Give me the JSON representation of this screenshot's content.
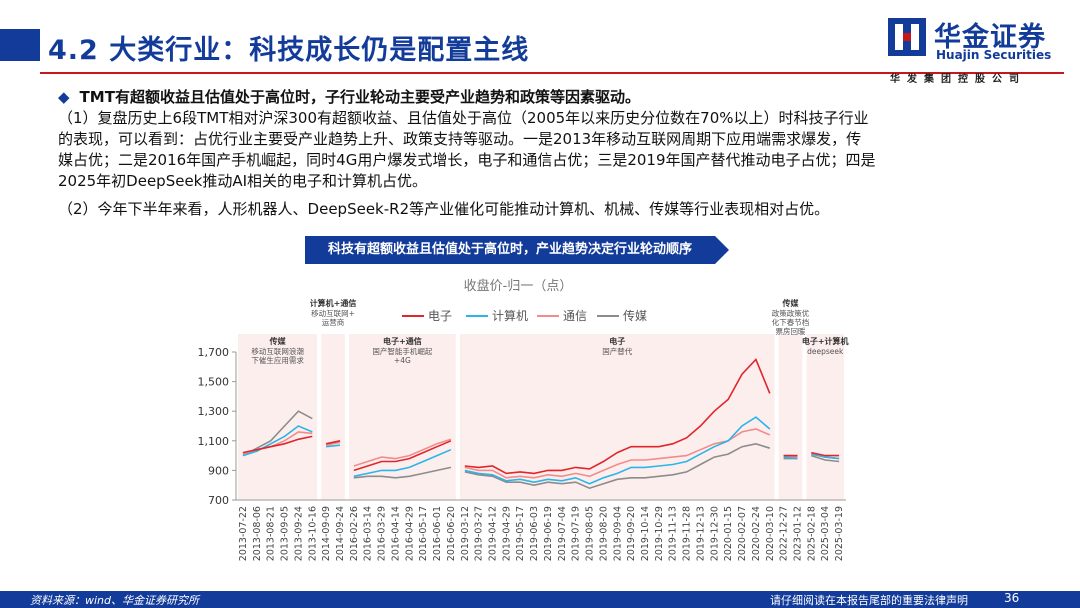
{
  "header": {
    "title": "4.2 大类行业：科技成长仍是配置主线",
    "logo_cn": "华金证券",
    "logo_en": "Huajin Securities",
    "logo_sub": "华发集团控股公司"
  },
  "summary": {
    "bullet": "TMT有超额收益且估值处于高位时，子行业轮动主要受产业趋势和政策等因素驱动。",
    "para1_line1": "（1）复盘历史上6段TMT相对沪深300有超额收益、且估值处于高位（2005年以来历史分位数在70%以上）时科技子行业",
    "para1_line2": "的表现，可以看到：占优行业主要受产业趋势上升、政策支持等驱动。一是2013年移动互联网周期下应用端需求爆发，传",
    "para1_line3": "媒占优；二是2016年国产手机崛起，同时4G用户爆发式增长，电子和通信占优；三是2019年国产替代推动电子占优；四是",
    "para1_line4": "2025年初DeepSeek推动AI相关的电子和计算机占优。",
    "para2": "（2）今年下半年来看，人形机器人、DeepSeek-R2等产业催化可能推动计算机、机械、传媒等行业表现相对占优。"
  },
  "banner": "科技有超额收益且估值处于高位时，产业趋势决定行业轮动顺序",
  "footer": {
    "source": "资料来源：wind、华金证券研究所",
    "disclaimer": "请仔细阅读在本报告尾部的重要法律声明",
    "page": "36"
  },
  "colors": {
    "brand_blue": "#123b9a",
    "brand_red": "#c8161d",
    "electronics": "#e0262b",
    "computer": "#2bb5e8",
    "telecom": "#f28b8b",
    "media": "#8c8c8c",
    "shade": "#fdeeee"
  },
  "chart_data": {
    "type": "line",
    "title": "收盘价-归一（点）",
    "ylim": [
      700,
      1700
    ],
    "yticks": [
      "700",
      "900",
      "1,100",
      "1,300",
      "1,500",
      "1,700"
    ],
    "x_ticks": [
      "2013-07-22",
      "2013-08-06",
      "2013-08-21",
      "2013-09-05",
      "2013-09-24",
      "2013-10-16",
      "2014-09-09",
      "2014-09-24",
      "2016-02-26",
      "2016-03-14",
      "2016-03-29",
      "2016-04-14",
      "2016-04-29",
      "2016-05-17",
      "2016-06-01",
      "2016-06-20",
      "2019-03-12",
      "2019-03-27",
      "2019-04-12",
      "2019-04-29",
      "2019-05-17",
      "2019-06-03",
      "2019-06-19",
      "2019-07-04",
      "2019-07-19",
      "2019-08-05",
      "2019-08-20",
      "2019-09-04",
      "2019-09-20",
      "2019-10-14",
      "2019-10-29",
      "2019-11-13",
      "2019-11-28",
      "2019-12-13",
      "2019-12-30",
      "2020-01-15",
      "2020-02-07",
      "2020-02-24",
      "2020-03-10",
      "2022-12-27",
      "2023-01-12",
      "2025-02-18",
      "2025-03-04",
      "2025-03-19"
    ],
    "series": [
      {
        "name": "电子",
        "values": [
          1020,
          1040,
          1060,
          1080,
          1110,
          1130,
          1080,
          1100,
          900,
          930,
          960,
          960,
          980,
          1020,
          1060,
          1100,
          930,
          920,
          930,
          880,
          890,
          880,
          900,
          900,
          920,
          910,
          960,
          1020,
          1060,
          1060,
          1060,
          1080,
          1120,
          1200,
          1300,
          1380,
          1550,
          1650,
          1420,
          1000,
          1000,
          1020,
          1000,
          1000
        ]
      },
      {
        "name": "计算机",
        "values": [
          1000,
          1030,
          1080,
          1130,
          1200,
          1160,
          1060,
          1070,
          860,
          880,
          900,
          900,
          920,
          960,
          1000,
          1040,
          900,
          880,
          870,
          830,
          840,
          820,
          840,
          830,
          850,
          810,
          850,
          880,
          920,
          920,
          930,
          940,
          960,
          1010,
          1060,
          1100,
          1200,
          1260,
          1180,
          990,
          980,
          1010,
          990,
          980
        ]
      },
      {
        "name": "通信",
        "values": [
          1010,
          1040,
          1060,
          1100,
          1160,
          1150,
          1070,
          1090,
          930,
          960,
          990,
          980,
          1000,
          1040,
          1080,
          1110,
          920,
          900,
          900,
          850,
          860,
          850,
          870,
          860,
          880,
          860,
          900,
          940,
          970,
          970,
          980,
          990,
          1000,
          1040,
          1080,
          1100,
          1160,
          1180,
          1140,
          1000,
          990,
          1010,
          990,
          980
        ]
      },
      {
        "name": "传媒",
        "values": [
          1000,
          1050,
          1100,
          1200,
          1300,
          1250,
          1080,
          1090,
          850,
          860,
          860,
          850,
          860,
          880,
          900,
          920,
          890,
          870,
          860,
          820,
          820,
          800,
          820,
          810,
          820,
          780,
          810,
          840,
          850,
          850,
          860,
          870,
          890,
          940,
          990,
          1010,
          1060,
          1080,
          1050,
          980,
          980,
          1000,
          970,
          960
        ]
      }
    ],
    "periods": [
      {
        "title": "传媒",
        "desc": [
          "移动互联网浪潮",
          "下催生应用需求"
        ],
        "start": 0,
        "end": 5
      },
      {
        "title": "计算机+通信",
        "desc": [
          "移动互联网+",
          "运营商"
        ],
        "start": 6,
        "end": 7
      },
      {
        "title": "电子+通信",
        "desc": [
          "国产智能手机崛起",
          "+4G"
        ],
        "start": 8,
        "end": 15
      },
      {
        "title": "电子",
        "desc": [
          "国产替代"
        ],
        "start": 16,
        "end": 38
      },
      {
        "title": "传媒",
        "desc": [
          "政策政策优",
          "化下春节档",
          "票房回暖"
        ],
        "start": 39,
        "end": 40
      },
      {
        "title": "电子+计算机",
        "desc": [
          "deepseek"
        ],
        "start": 41,
        "end": 43
      }
    ]
  }
}
